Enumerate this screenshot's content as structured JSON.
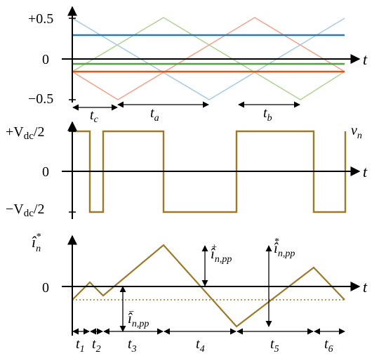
{
  "colors": {
    "axis": "#000000",
    "tri_blue": "#a9cde6",
    "tri_green": "#b6d49a",
    "tri_red": "#f0a58e",
    "ref_blue": "#2a7ab8",
    "ref_green": "#4ea33c",
    "ref_red": "#e0541f",
    "signal": "#9b7a2a"
  },
  "panel1": {
    "y_ticks": {
      "top": "+0.5",
      "zero": "0",
      "bottom": "−0.5"
    },
    "axis_label": "t",
    "interval_labels": {
      "tc_main": "t",
      "tc_sub": "c",
      "ta_main": "t",
      "ta_sub": "a",
      "tb_main": "t",
      "tb_sub": "b"
    }
  },
  "panel2": {
    "y_ticks": {
      "top_pre": "+V",
      "top_sub": "dc",
      "top_post": "/2",
      "zero": "0",
      "bot_pre": "−V",
      "bot_sub": "dc",
      "bot_post": "/2"
    },
    "axis_label": "t",
    "signal_main": "v",
    "signal_sub": "n"
  },
  "panel3": {
    "ylabel_main": "î",
    "ylabel_sub": "n",
    "ylabel_sup": "*",
    "zero": "0",
    "axis_label": "t",
    "pp_plus": {
      "main": "î",
      "sub": "n,pp",
      "sup": "+"
    },
    "pp_star": {
      "main": "î",
      "sub": "n,pp",
      "sup": "*"
    },
    "pp_minus": {
      "main": "î",
      "sub": "n,pp",
      "sup": "−"
    },
    "t_labels": [
      {
        "main": "t",
        "sub": "1"
      },
      {
        "main": "t",
        "sub": "2"
      },
      {
        "main": "t",
        "sub": "3"
      },
      {
        "main": "t",
        "sub": "4"
      },
      {
        "main": "t",
        "sub": "5"
      },
      {
        "main": "t",
        "sub": "6"
      }
    ]
  }
}
